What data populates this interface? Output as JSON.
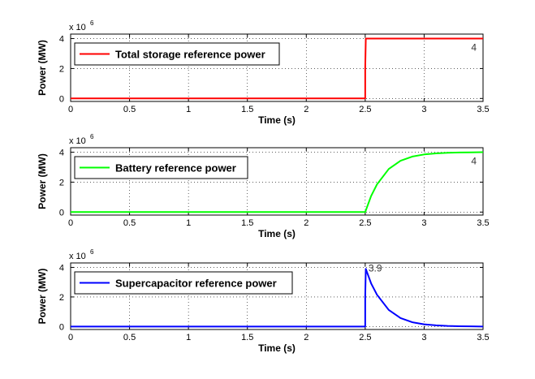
{
  "chart_data": [
    {
      "type": "line",
      "xlabel": "Time (s)",
      "ylabel": "Power (MW)",
      "xlim": [
        0,
        3.5
      ],
      "ylim": [
        -0.2,
        4.3
      ],
      "x_ticks": [
        "0",
        "0.5",
        "1",
        "1.5",
        "2",
        "2.5",
        "3",
        "3.5"
      ],
      "y_ticks": [
        "0",
        "2",
        "4"
      ],
      "y_multiplier_base": "x 10",
      "y_multiplier_exp": "6",
      "grid": true,
      "legend_position": "top-left",
      "annotation": "4",
      "series": [
        {
          "name": "Total storage reference power",
          "color": "#ff0000",
          "x": [
            0,
            2.5,
            2.5,
            2.505,
            3.5
          ],
          "y": [
            0,
            0,
            2.0,
            4.0,
            4.0
          ]
        }
      ]
    },
    {
      "type": "line",
      "xlabel": "Time (s)",
      "ylabel": "Power (MW)",
      "xlim": [
        0,
        3.5
      ],
      "ylim": [
        -0.2,
        4.3
      ],
      "x_ticks": [
        "0",
        "0.5",
        "1",
        "1.5",
        "2",
        "2.5",
        "3",
        "3.5"
      ],
      "y_ticks": [
        "0",
        "2",
        "4"
      ],
      "y_multiplier_base": "x 10",
      "y_multiplier_exp": "6",
      "grid": true,
      "legend_position": "top-left",
      "annotation": "4",
      "series": [
        {
          "name": "Battery reference power",
          "color": "#00ff00",
          "x": [
            0,
            2.5,
            2.55,
            2.6,
            2.7,
            2.8,
            2.9,
            3.0,
            3.1,
            3.2,
            3.3,
            3.4,
            3.5
          ],
          "y": [
            0,
            0,
            1.07,
            1.85,
            2.88,
            3.43,
            3.71,
            3.85,
            3.92,
            3.96,
            3.98,
            3.99,
            4.0
          ]
        }
      ]
    },
    {
      "type": "line",
      "xlabel": "Time (s)",
      "ylabel": "Power (MW)",
      "xlim": [
        0,
        3.5
      ],
      "ylim": [
        -0.2,
        4.3
      ],
      "x_ticks": [
        "0",
        "0.5",
        "1",
        "1.5",
        "2",
        "2.5",
        "3",
        "3.5"
      ],
      "y_ticks": [
        "0",
        "2",
        "4"
      ],
      "y_multiplier_base": "x 10",
      "y_multiplier_exp": "6",
      "grid": true,
      "legend_position": "top-left",
      "annotation": "3.9",
      "series": [
        {
          "name": "Supercapacitor reference power",
          "color": "#0000ff",
          "x": [
            0,
            2.5,
            2.5,
            2.505,
            2.55,
            2.6,
            2.7,
            2.8,
            2.9,
            3.0,
            3.1,
            3.2,
            3.3,
            3.4,
            3.5
          ],
          "y": [
            0,
            0,
            2.0,
            3.9,
            2.92,
            2.15,
            1.12,
            0.57,
            0.29,
            0.15,
            0.08,
            0.04,
            0.02,
            0.01,
            0.0
          ]
        }
      ]
    }
  ]
}
